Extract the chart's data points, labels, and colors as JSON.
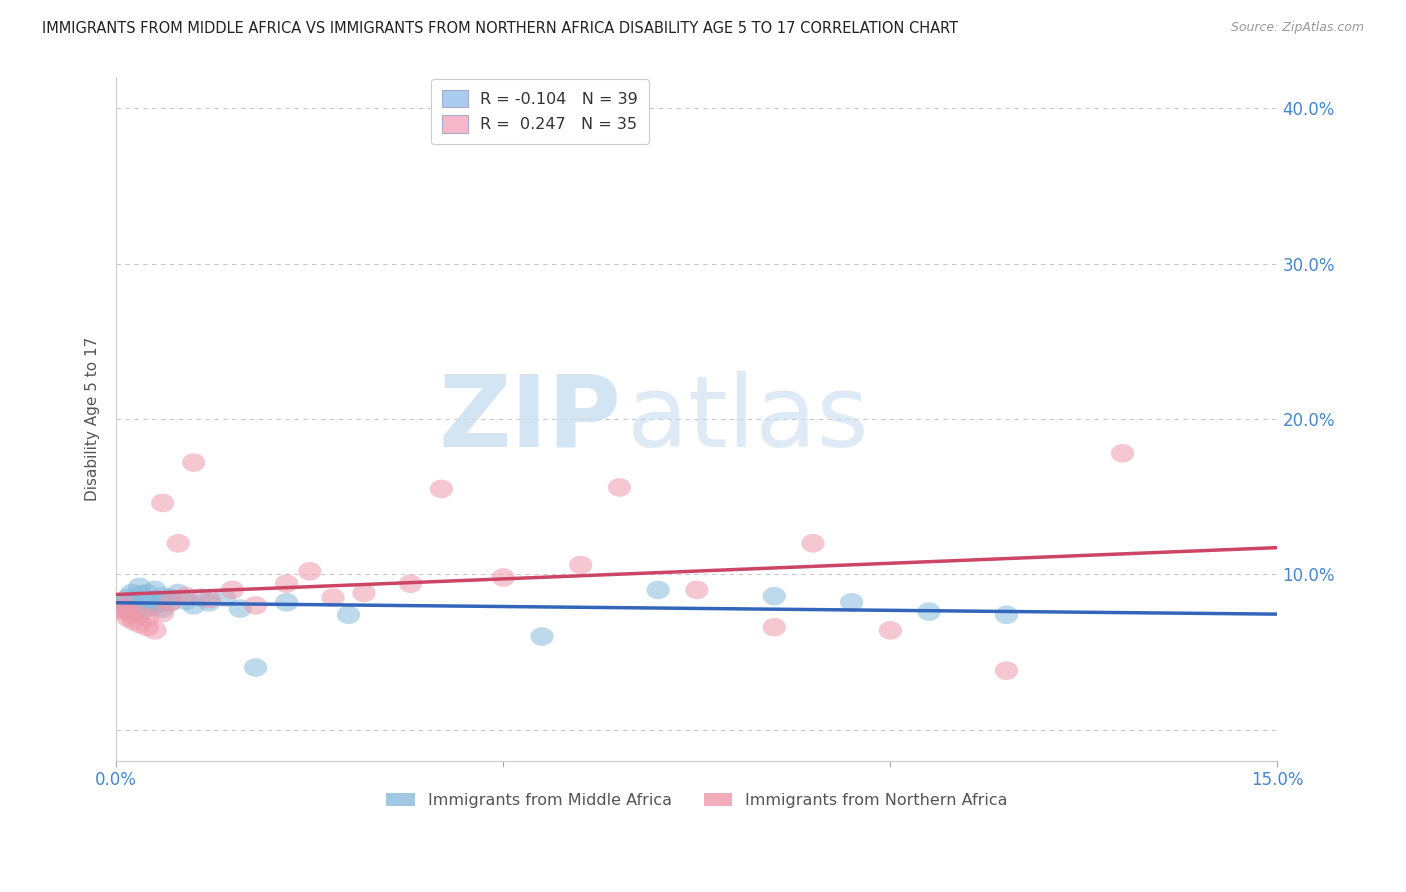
{
  "title": "IMMIGRANTS FROM MIDDLE AFRICA VS IMMIGRANTS FROM NORTHERN AFRICA DISABILITY AGE 5 TO 17 CORRELATION CHART",
  "source": "Source: ZipAtlas.com",
  "ylabel": "Disability Age 5 to 17",
  "xlim": [
    0.0,
    0.15
  ],
  "ylim": [
    -0.02,
    0.42
  ],
  "yticks": [
    0.0,
    0.1,
    0.2,
    0.3,
    0.4
  ],
  "ytick_labels": [
    "",
    "10.0%",
    "20.0%",
    "30.0%",
    "40.0%"
  ],
  "legend_entries": [
    {
      "label": "R = -0.104   N = 39",
      "color": "#aaccee"
    },
    {
      "label": "R =  0.247   N = 35",
      "color": "#f5b8c8"
    }
  ],
  "series1_label": "Immigrants from Middle Africa",
  "series2_label": "Immigrants from Northern Africa",
  "series1_color": "#88bbdd",
  "series2_color": "#ee99aa",
  "series1_line_color": "#3366bb",
  "series2_line_color": "#cc4466",
  "watermark_zip_color": "#c8dff0",
  "watermark_atlas_color": "#c8ddf0",
  "background_color": "#ffffff",
  "grid_color": "#bbbbbb",
  "title_color": "#222222",
  "axis_label_color": "#555555",
  "tick_color": "#4488cc",
  "series1_x": [
    0.0008,
    0.001,
    0.0012,
    0.0015,
    0.002,
    0.002,
    0.0022,
    0.0025,
    0.003,
    0.003,
    0.003,
    0.0035,
    0.004,
    0.004,
    0.004,
    0.005,
    0.005,
    0.005,
    0.006,
    0.006,
    0.006,
    0.007,
    0.007,
    0.008,
    0.009,
    0.01,
    0.011,
    0.012,
    0.014,
    0.016,
    0.018,
    0.022,
    0.03,
    0.055,
    0.07,
    0.085,
    0.095,
    0.105,
    0.115
  ],
  "series1_y": [
    0.08,
    0.082,
    0.078,
    0.085,
    0.082,
    0.088,
    0.08,
    0.076,
    0.083,
    0.087,
    0.092,
    0.078,
    0.082,
    0.078,
    0.088,
    0.084,
    0.08,
    0.09,
    0.082,
    0.086,
    0.078,
    0.085,
    0.082,
    0.088,
    0.083,
    0.08,
    0.085,
    0.082,
    0.085,
    0.078,
    0.04,
    0.082,
    0.074,
    0.06,
    0.09,
    0.086,
    0.082,
    0.076,
    0.074
  ],
  "series2_x": [
    0.0008,
    0.001,
    0.0012,
    0.0015,
    0.002,
    0.0022,
    0.003,
    0.003,
    0.004,
    0.004,
    0.005,
    0.006,
    0.006,
    0.007,
    0.008,
    0.009,
    0.01,
    0.012,
    0.015,
    0.018,
    0.022,
    0.025,
    0.028,
    0.032,
    0.038,
    0.042,
    0.05,
    0.06,
    0.065,
    0.075,
    0.085,
    0.09,
    0.1,
    0.115,
    0.13
  ],
  "series2_y": [
    0.078,
    0.076,
    0.08,
    0.072,
    0.074,
    0.07,
    0.068,
    0.074,
    0.066,
    0.072,
    0.064,
    0.146,
    0.075,
    0.082,
    0.12,
    0.086,
    0.172,
    0.084,
    0.09,
    0.08,
    0.094,
    0.102,
    0.085,
    0.088,
    0.094,
    0.155,
    0.098,
    0.106,
    0.156,
    0.09,
    0.066,
    0.12,
    0.064,
    0.038,
    0.178
  ]
}
